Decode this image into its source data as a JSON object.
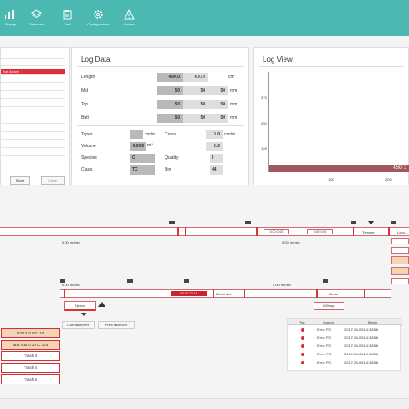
{
  "toolbar": {
    "items": [
      {
        "label": "... Range",
        "icon": "chart-icon"
      },
      {
        "label": "Takeover",
        "icon": "stack-icon"
      },
      {
        "label": "Test",
        "icon": "clipboard-icon"
      },
      {
        "label": "Configuration",
        "icon": "gear-icon"
      },
      {
        "label": "Alarms",
        "icon": "warning-icon"
      }
    ]
  },
  "left_panel": {
    "active_label": "Not Active",
    "start_label": "Start",
    "close_label": "Close"
  },
  "log_data": {
    "title": "Log Data",
    "rows": [
      {
        "label": "Length",
        "v1": "450.0",
        "v2": "400.0",
        "v3": "",
        "unit": "cm"
      },
      {
        "label": "Mid",
        "v1": "50",
        "v2": "50",
        "v3": "50",
        "unit": "mm"
      },
      {
        "label": "Top",
        "v1": "50",
        "v2": "50",
        "v3": "50",
        "unit": "mm"
      },
      {
        "label": "Butt",
        "v1": "50",
        "v2": "50",
        "v3": "50",
        "unit": "mm"
      }
    ],
    "taper_label": "Taper",
    "taper_unit": "cm/m",
    "crook_label": "Crook",
    "crook_value": "0.0",
    "crook_unit": "cm/m",
    "volume_label": "Volume",
    "volume_value": "0.008",
    "volume_unit": "m³",
    "volume_right_value": "0.0",
    "species_label": "Species",
    "species_value": "C",
    "quality_label": "Quality",
    "quality_value": "I",
    "class_label": "Class",
    "class_value": "TC",
    "bin_label": "Bin",
    "bin_value": "44"
  },
  "log_view": {
    "title": "Log View",
    "y_ticks": [
      "375",
      "250",
      "125"
    ],
    "x_ticks": [
      "100",
      "200"
    ],
    "bar_label": "450 c"
  },
  "conveyor": {
    "speed1": "0.00 m/min",
    "speed2": "0.00 m/min",
    "speed3": "0.00 m/min",
    "speed4": "0.00 m/min",
    "trimmer_label": "Trimmer",
    "log_label": "Log i...",
    "metal_label": "Metal det",
    "meas_label": "Meas",
    "dshape_label": "DiShape",
    "ejector_label": "Ejector",
    "curr_takeover_label": "Curr takeover",
    "prev_takeover_label": "Prev takeover",
    "seg_a": "0.00 0.00",
    "seg_b": "0.00 0.00",
    "seg_c": "00 23 77 A 1"
  },
  "trash_list": [
    {
      "label": "520 0.0 0 C 10",
      "style": "peach"
    },
    {
      "label": "519 415.0 24 C 144",
      "style": "peach"
    },
    {
      "label": "Trash 3",
      "style": "white"
    },
    {
      "label": "Trash 4",
      "style": "white"
    },
    {
      "label": "Trash 5",
      "style": "white"
    }
  ],
  "alarm_table": {
    "headers": [
      "Typ",
      "Source",
      "Begin"
    ],
    "rows": [
      {
        "source": "Error PC",
        "begin": "2017-05-05 14:38:56"
      },
      {
        "source": "Error PC",
        "begin": "2017-05-05 14:38:56"
      },
      {
        "source": "Error PC",
        "begin": "2017-05-05 14:38:56"
      },
      {
        "source": "Error PC",
        "begin": "2017-05-05 14:38:56"
      },
      {
        "source": "Error PC",
        "begin": "2017-05-05 14:38:56"
      }
    ]
  },
  "colors": {
    "teal": "#4cb8b2",
    "red": "#d8323b",
    "peach": "#f3d4b3"
  }
}
